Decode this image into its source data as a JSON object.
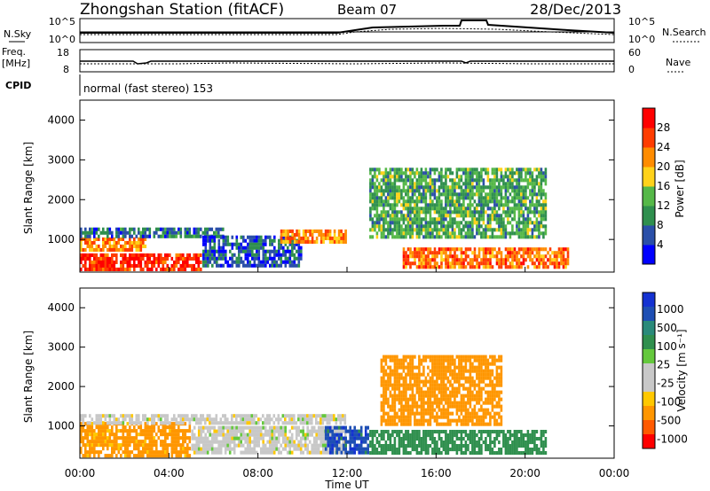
{
  "header": {
    "station": "Zhongshan Station (fitACF)",
    "beam": "Beam 07",
    "date": "28/Dec/2013"
  },
  "noise_panel": {
    "left_label": "N.Sky",
    "right_label": "N.Search",
    "left_ticks": [
      "10^5",
      "10^0"
    ],
    "right_ticks": [
      "10^5",
      "10^0"
    ]
  },
  "freq_panel": {
    "left_label_line1": "Freq.",
    "left_label_line2": "[MHz]",
    "right_label": "Nave",
    "left_ticks": [
      "18",
      "8"
    ],
    "right_ticks": [
      "60",
      "0"
    ]
  },
  "cpid": {
    "label": "CPID",
    "text": "normal (fast stereo) 153"
  },
  "colors": {
    "power_scale": [
      "#0000ff",
      "#2a4fa8",
      "#2f8f4e",
      "#55b848",
      "#ffd21a",
      "#ff8c00",
      "#ff3c00",
      "#ff0000"
    ],
    "velocity_scale": [
      "#ff0000",
      "#ff5a00",
      "#ff9600",
      "#ffc800",
      "#c8c8c8",
      "#c8c8c8",
      "#64c83c",
      "#2f8f4e",
      "#2a8a7a",
      "#1e4fb4",
      "#1432d2"
    ]
  },
  "chart_data": [
    {
      "type": "heatmap",
      "name": "power",
      "xlabel": "",
      "ylabel": "Slant Range [km]",
      "y_ticks": [
        "1000",
        "2000",
        "3000",
        "4000"
      ],
      "ylim": [
        180,
        4500
      ],
      "xlim_hours": [
        0,
        24
      ],
      "colorbar": {
        "label": "Power [dB]",
        "tick_labels": [
          "4",
          "8",
          "12",
          "16",
          "20",
          "24",
          "28"
        ]
      },
      "regions": [
        {
          "t0": 0.0,
          "t1": 5.5,
          "r0": 200,
          "r1": 650,
          "level": 28
        },
        {
          "t0": 0.0,
          "t1": 3.0,
          "r0": 650,
          "r1": 1050,
          "level": 22
        },
        {
          "t0": 0.0,
          "t1": 6.5,
          "r0": 1000,
          "r1": 1300,
          "level": 8
        },
        {
          "t0": 5.5,
          "t1": 10.0,
          "r0": 300,
          "r1": 1100,
          "level": 6
        },
        {
          "t0": 9.0,
          "t1": 12.0,
          "r0": 900,
          "r1": 1250,
          "level": 22
        },
        {
          "t0": 13.0,
          "t1": 21.0,
          "r0": 1000,
          "r1": 2800,
          "level": 12
        },
        {
          "t0": 14.5,
          "t1": 22.0,
          "r0": 300,
          "r1": 800,
          "level": 24
        }
      ]
    },
    {
      "type": "heatmap",
      "name": "velocity",
      "xlabel": "Time UT",
      "ylabel": "Slant Range [km]",
      "x_ticks": [
        "00:00",
        "04:00",
        "08:00",
        "12:00",
        "16:00",
        "20:00",
        "00:00"
      ],
      "y_ticks": [
        "1000",
        "2000",
        "3000",
        "4000"
      ],
      "ylim": [
        180,
        4500
      ],
      "xlim_hours": [
        0,
        24
      ],
      "colorbar": {
        "label": "Velocity [m s⁻¹]",
        "tick_labels": [
          "1000",
          "500",
          "100",
          "25",
          "-25",
          "-100",
          "-500",
          "-1000"
        ]
      },
      "regions": [
        {
          "t0": 0.0,
          "t1": 5.0,
          "r0": 200,
          "r1": 1100,
          "level": -150
        },
        {
          "t0": 0.0,
          "t1": 12.0,
          "r0": 1000,
          "r1": 1300,
          "level": 0
        },
        {
          "t0": 5.0,
          "t1": 12.0,
          "r0": 300,
          "r1": 1000,
          "level": 0
        },
        {
          "t0": 11.0,
          "t1": 13.0,
          "r0": 300,
          "r1": 1000,
          "level": 800
        },
        {
          "t0": 13.0,
          "t1": 21.0,
          "r0": 300,
          "r1": 900,
          "level": 200
        },
        {
          "t0": 13.5,
          "t1": 19.0,
          "r0": 1000,
          "r1": 2800,
          "level": -300
        }
      ]
    }
  ]
}
